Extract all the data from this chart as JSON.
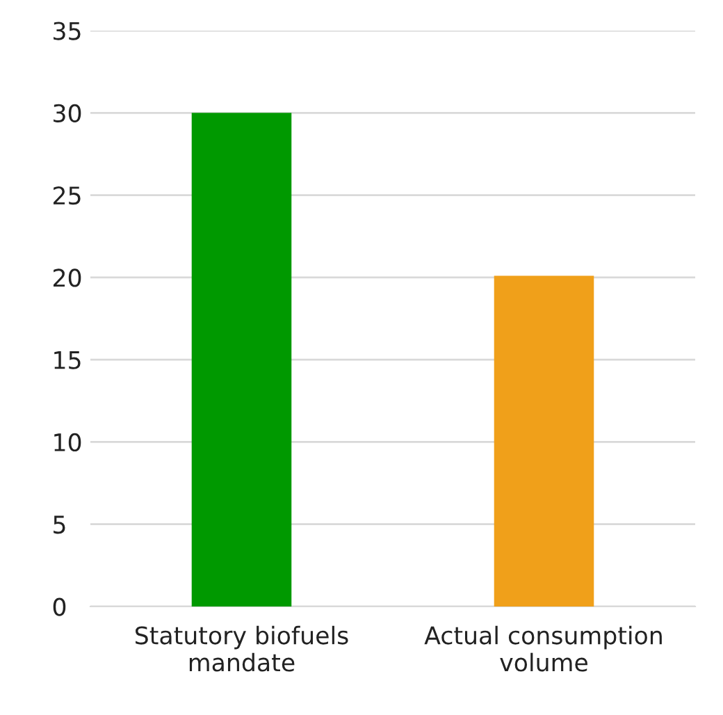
{
  "chart_data": {
    "type": "bar",
    "categories": [
      "Statutory biofuels\nmandate",
      "Actual consumption\nvolume"
    ],
    "values": [
      30,
      20.1
    ],
    "colors": [
      "#009900",
      "#f0a01a"
    ],
    "ylim": [
      0,
      35
    ],
    "yticks": [
      0,
      5,
      10,
      15,
      20,
      25,
      30,
      35
    ],
    "grid": "y",
    "legend": false
  }
}
